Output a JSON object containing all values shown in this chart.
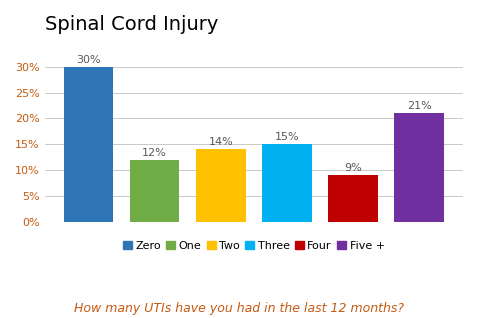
{
  "title": "Spinal Cord Injury",
  "xlabel": "How many UTIs have you had in the last 12 months?",
  "categories": [
    "Zero",
    "One",
    "Two",
    "Three",
    "Four",
    "Five +"
  ],
  "values": [
    30,
    12,
    14,
    15,
    9,
    21
  ],
  "bar_colors": [
    "#2E75B6",
    "#70AD47",
    "#FFC000",
    "#00B0F0",
    "#C00000",
    "#7030A0"
  ],
  "ylim": [
    0,
    35
  ],
  "yticks": [
    0,
    5,
    10,
    15,
    20,
    25,
    30
  ],
  "ytick_labels": [
    "0%",
    "5%",
    "10%",
    "15%",
    "20%",
    "25%",
    "30%"
  ],
  "title_fontsize": 14,
  "xlabel_fontsize": 9,
  "xlabel_color": "#C55A11",
  "ytick_color": "#C55A11",
  "bar_label_fontsize": 8,
  "legend_fontsize": 8,
  "background_color": "#FFFFFF",
  "grid_color": "#C0C0C0"
}
